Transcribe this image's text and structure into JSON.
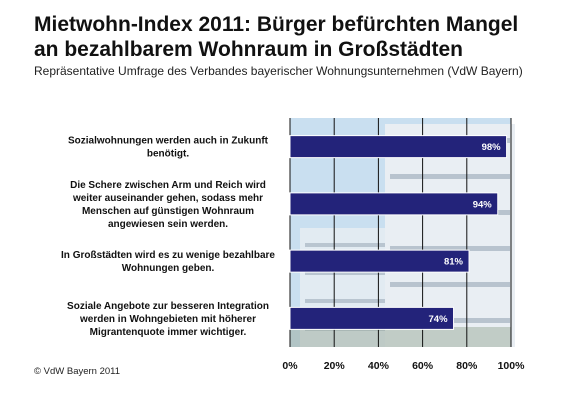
{
  "header": {
    "title_line1": "Mietwohn-Index 2011: Bürger befürchten Mangel",
    "title_line2": "an bezahlbarem Wohnraum in Großstädten",
    "subtitle": "Repräsentative Umfrage des Verbandes bayerischer Wohnungsunternehmen (VdW Bayern)"
  },
  "footer": {
    "copyright": "© VdW Bayern 2011"
  },
  "colors": {
    "bar_fill": "#23237a",
    "bar_edge": "#ffffff",
    "value_text": "#ffffff",
    "photo_sky": "#c9dff0",
    "photo_building": "#e9eef3",
    "photo_shadow": "#8fa0ae"
  },
  "chart_data": {
    "type": "bar",
    "orientation": "horizontal",
    "categories": [
      [
        "Sozialwohnungen werden auch in Zukunft",
        "benötigt."
      ],
      [
        "Die Schere zwischen Arm und Reich wird",
        "weiter auseinander gehen, sodass mehr",
        "Menschen auf günstigen Wohnraum",
        "angewiesen sein werden."
      ],
      [
        "In Großstädten wird es zu wenige bezahlbare",
        "Wohnungen geben."
      ],
      [
        "Soziale Angebote zur besseren Integration",
        "werden in Wohngebieten mit höherer",
        "Migrantenquote immer wichtiger."
      ]
    ],
    "values": [
      98,
      94,
      81,
      74
    ],
    "value_labels": [
      "98%",
      "94%",
      "81%",
      "74%"
    ],
    "xlim": [
      0,
      100
    ],
    "xticks": [
      0,
      20,
      40,
      60,
      80,
      100
    ],
    "xtick_labels": [
      "0%",
      "20%",
      "40%",
      "60%",
      "80%",
      "100%"
    ],
    "grid": true,
    "legend": "none"
  }
}
